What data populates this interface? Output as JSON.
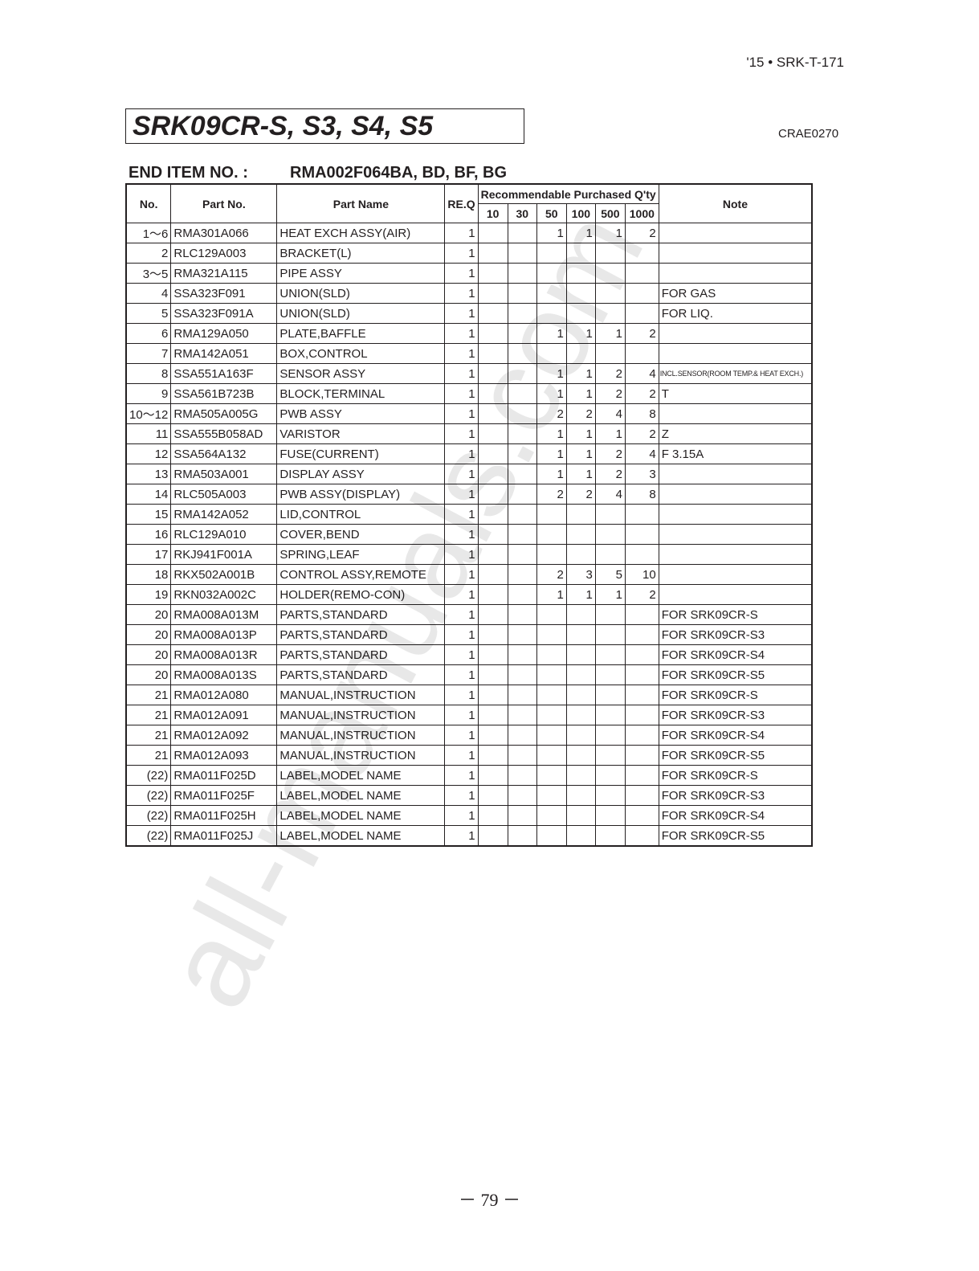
{
  "header": {
    "doc_id": "'15 • SRK-T-171",
    "title": "SRK09CR-S, S3, S4, S5",
    "code": "CRAE0270",
    "end_item_label": "END ITEM NO.  :",
    "end_item_value": "RMA002F064BA, BD, BF, BG"
  },
  "table": {
    "headers": {
      "no": "No.",
      "part_no": "Part No.",
      "part_name": "Part Name",
      "req": "RE.Q",
      "recommend": "Recommendable Purchased Q'ty",
      "qty_cols": [
        "10",
        "30",
        "50",
        "100",
        "500",
        "1000"
      ],
      "note": "Note"
    },
    "rows": [
      [
        "1～6",
        "RMA301A066",
        "HEAT EXCH ASSY(AIR)",
        "1",
        "",
        "",
        "1",
        "1",
        "1",
        "2",
        ""
      ],
      [
        "2",
        "RLC129A003",
        "BRACKET(L)",
        "1",
        "",
        "",
        "",
        "",
        "",
        "",
        ""
      ],
      [
        "3～5",
        "RMA321A115",
        "PIPE ASSY",
        "1",
        "",
        "",
        "",
        "",
        "",
        "",
        ""
      ],
      [
        "4",
        "SSA323F091",
        "UNION(SLD)",
        "1",
        "",
        "",
        "",
        "",
        "",
        "",
        "FOR GAS"
      ],
      [
        "5",
        "SSA323F091A",
        "UNION(SLD)",
        "1",
        "",
        "",
        "",
        "",
        "",
        "",
        "FOR LIQ."
      ],
      [
        "6",
        "RMA129A050",
        "PLATE,BAFFLE",
        "1",
        "",
        "",
        "1",
        "1",
        "1",
        "2",
        ""
      ],
      [
        "7",
        "RMA142A051",
        "BOX,CONTROL",
        "1",
        "",
        "",
        "",
        "",
        "",
        "",
        ""
      ],
      [
        "8",
        "SSA551A163F",
        "SENSOR ASSY",
        "1",
        "",
        "",
        "1",
        "1",
        "2",
        "4",
        "INCL.SENSOR(ROOM TEMP.& HEAT EXCH.)"
      ],
      [
        "9",
        "SSA561B723B",
        "BLOCK,TERMINAL",
        "1",
        "",
        "",
        "1",
        "1",
        "2",
        "2",
        "T"
      ],
      [
        "10～12",
        "RMA505A005G",
        "PWB ASSY",
        "1",
        "",
        "",
        "2",
        "2",
        "4",
        "8",
        ""
      ],
      [
        "11",
        "SSA555B058AD",
        "VARISTOR",
        "1",
        "",
        "",
        "1",
        "1",
        "1",
        "2",
        "Z"
      ],
      [
        "12",
        "SSA564A132",
        "FUSE(CURRENT)",
        "1",
        "",
        "",
        "1",
        "1",
        "2",
        "4",
        "F 3.15A"
      ],
      [
        "13",
        "RMA503A001",
        "DISPLAY ASSY",
        "1",
        "",
        "",
        "1",
        "1",
        "2",
        "3",
        ""
      ],
      [
        "14",
        "RLC505A003",
        "PWB ASSY(DISPLAY)",
        "1",
        "",
        "",
        "2",
        "2",
        "4",
        "8",
        ""
      ],
      [
        "15",
        "RMA142A052",
        "LID,CONTROL",
        "1",
        "",
        "",
        "",
        "",
        "",
        "",
        ""
      ],
      [
        "16",
        "RLC129A010",
        "COVER,BEND",
        "1",
        "",
        "",
        "",
        "",
        "",
        "",
        ""
      ],
      [
        "17",
        "RKJ941F001A",
        "SPRING,LEAF",
        "1",
        "",
        "",
        "",
        "",
        "",
        "",
        ""
      ],
      [
        "18",
        "RKX502A001B",
        "CONTROL ASSY,REMOTE",
        "1",
        "",
        "",
        "2",
        "3",
        "5",
        "10",
        ""
      ],
      [
        "19",
        "RKN032A002C",
        "HOLDER(REMO-CON)",
        "1",
        "",
        "",
        "1",
        "1",
        "1",
        "2",
        ""
      ],
      [
        "20",
        "RMA008A013M",
        "PARTS,STANDARD",
        "1",
        "",
        "",
        "",
        "",
        "",
        "",
        "FOR SRK09CR-S"
      ],
      [
        "20",
        "RMA008A013P",
        "PARTS,STANDARD",
        "1",
        "",
        "",
        "",
        "",
        "",
        "",
        "FOR SRK09CR-S3"
      ],
      [
        "20",
        "RMA008A013R",
        "PARTS,STANDARD",
        "1",
        "",
        "",
        "",
        "",
        "",
        "",
        "FOR SRK09CR-S4"
      ],
      [
        "20",
        "RMA008A013S",
        "PARTS,STANDARD",
        "1",
        "",
        "",
        "",
        "",
        "",
        "",
        "FOR SRK09CR-S5"
      ],
      [
        "21",
        "RMA012A080",
        "MANUAL,INSTRUCTION",
        "1",
        "",
        "",
        "",
        "",
        "",
        "",
        "FOR SRK09CR-S"
      ],
      [
        "21",
        "RMA012A091",
        "MANUAL,INSTRUCTION",
        "1",
        "",
        "",
        "",
        "",
        "",
        "",
        "FOR SRK09CR-S3"
      ],
      [
        "21",
        "RMA012A092",
        "MANUAL,INSTRUCTION",
        "1",
        "",
        "",
        "",
        "",
        "",
        "",
        "FOR SRK09CR-S4"
      ],
      [
        "21",
        "RMA012A093",
        "MANUAL,INSTRUCTION",
        "1",
        "",
        "",
        "",
        "",
        "",
        "",
        "FOR SRK09CR-S5"
      ],
      [
        "(22)",
        "RMA011F025D",
        "LABEL,MODEL NAME",
        "1",
        "",
        "",
        "",
        "",
        "",
        "",
        "FOR SRK09CR-S"
      ],
      [
        "(22)",
        "RMA011F025F",
        "LABEL,MODEL NAME",
        "1",
        "",
        "",
        "",
        "",
        "",
        "",
        "FOR SRK09CR-S3"
      ],
      [
        "(22)",
        "RMA011F025H",
        "LABEL,MODEL NAME",
        "1",
        "",
        "",
        "",
        "",
        "",
        "",
        "FOR SRK09CR-S4"
      ],
      [
        "(22)",
        "RMA011F025J",
        "LABEL,MODEL NAME",
        "1",
        "",
        "",
        "",
        "",
        "",
        "",
        "FOR SRK09CR-S5"
      ]
    ]
  },
  "footer": {
    "page_number": "－ 79 －"
  },
  "watermark": "all-manuals.com"
}
